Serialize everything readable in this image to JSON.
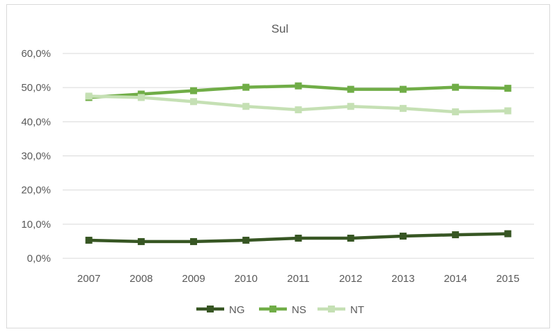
{
  "chart_data": {
    "type": "line",
    "title": "Sul",
    "xlabel": "",
    "ylabel": "",
    "categories": [
      "2007",
      "2008",
      "2009",
      "2010",
      "2011",
      "2012",
      "2013",
      "2014",
      "2015"
    ],
    "ylim": [
      0,
      60
    ],
    "yticks": [
      0,
      10,
      20,
      30,
      40,
      50,
      60
    ],
    "ytick_labels": [
      "0,0%",
      "10,0%",
      "20,0%",
      "30,0%",
      "40,0%",
      "50,0%",
      "60,0%"
    ],
    "grid": true,
    "legend_position": "bottom",
    "series": [
      {
        "name": "NG",
        "color": "#375623",
        "values": [
          5.3,
          4.9,
          4.9,
          5.3,
          5.9,
          5.9,
          6.5,
          6.9,
          7.2
        ]
      },
      {
        "name": "NS",
        "color": "#70ad47",
        "values": [
          47.1,
          48.1,
          49.1,
          50.1,
          50.5,
          49.5,
          49.5,
          50.1,
          49.8
        ]
      },
      {
        "name": "NT",
        "color": "#c5e0b4",
        "values": [
          47.5,
          47.1,
          45.9,
          44.5,
          43.5,
          44.5,
          43.9,
          42.9,
          43.2
        ]
      }
    ]
  }
}
